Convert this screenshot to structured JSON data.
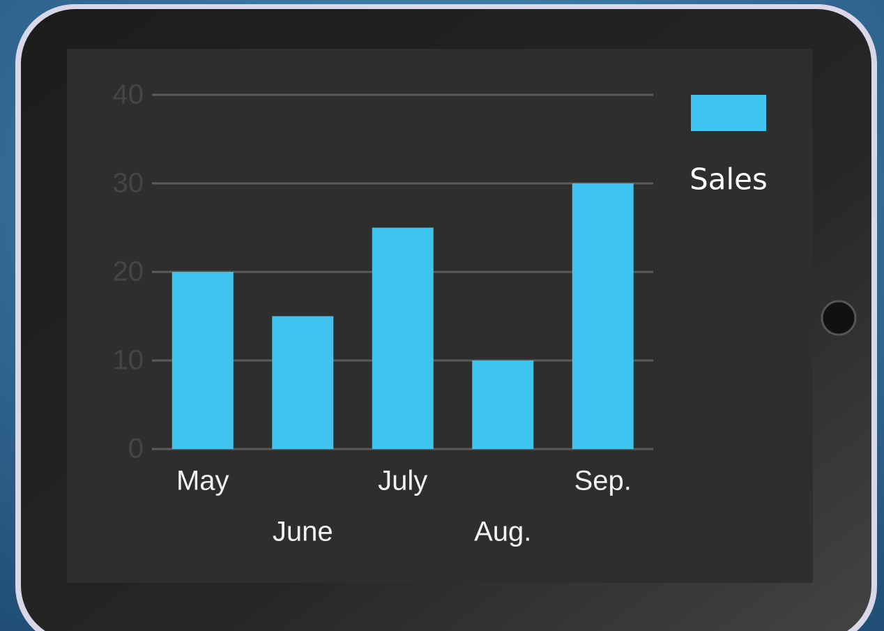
{
  "chart_data": {
    "type": "bar",
    "categories": [
      "May",
      "June",
      "July",
      "Aug.",
      "Sep."
    ],
    "series": [
      {
        "name": "Sales",
        "color": "#3ec4ee",
        "values": [
          20,
          15,
          25,
          10,
          30
        ]
      }
    ],
    "ylim": [
      0,
      40
    ],
    "yticks": [
      0,
      10,
      20,
      30,
      40
    ],
    "grid": true,
    "legend": "right"
  }
}
